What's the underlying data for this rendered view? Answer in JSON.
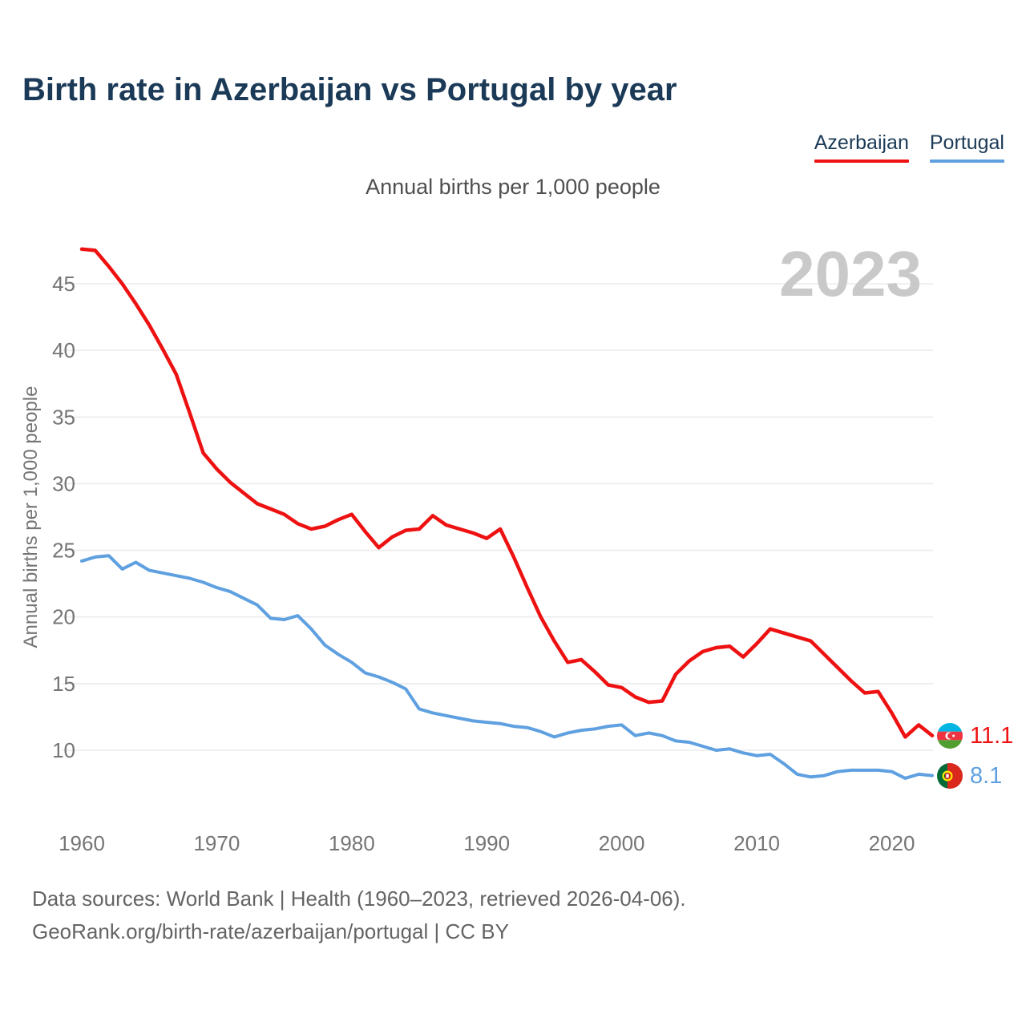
{
  "header": {
    "title": "Birth rate in Azerbaijan vs Portugal by year"
  },
  "subtitle": "Annual births per 1,000 people",
  "footer": {
    "line1": "Data sources: World Bank | Health (1960–2023, retrieved 2026-04-06).",
    "line2": "GeoRank.org/birth-rate/azerbaijan/portugal | CC BY"
  },
  "chart_data": {
    "type": "line",
    "title": "Birth rate in Azerbaijan vs Portugal by year",
    "ylabel": "Annual births per 1,000 people",
    "watermark": "2023",
    "grid": true,
    "legend_position": "top-right",
    "x_start": 1960,
    "x_end": 2023,
    "x_ticks": [
      1960,
      1970,
      1980,
      1990,
      2000,
      2010,
      2020
    ],
    "y_ticks": [
      10,
      15,
      20,
      25,
      30,
      35,
      40,
      45
    ],
    "ylim": [
      7,
      48.5
    ],
    "series": [
      {
        "name": "Azerbaijan",
        "color": "#ee1111",
        "end_label": "11.1",
        "flag_icon": "azerbaijan-flag-icon",
        "values": [
          47.6,
          47.5,
          46.3,
          45.0,
          43.5,
          41.9,
          40.1,
          38.2,
          35.3,
          32.3,
          31.1,
          30.1,
          29.3,
          28.5,
          28.1,
          27.7,
          27.0,
          26.6,
          26.8,
          27.3,
          27.7,
          26.4,
          25.2,
          26.0,
          26.5,
          26.6,
          27.6,
          26.9,
          26.6,
          26.3,
          25.9,
          26.6,
          24.5,
          22.2,
          20.0,
          18.2,
          16.6,
          16.8,
          15.9,
          14.9,
          14.7,
          14.0,
          13.6,
          13.7,
          15.7,
          16.7,
          17.4,
          17.7,
          17.8,
          17.0,
          18.0,
          19.1,
          18.8,
          18.5,
          18.2,
          17.2,
          16.2,
          15.2,
          14.3,
          14.4,
          12.8,
          11.0,
          11.9,
          11.1
        ]
      },
      {
        "name": "Portugal",
        "color": "#5fa0e0",
        "end_label": "8.1",
        "flag_icon": "portugal-flag-icon",
        "values": [
          24.2,
          24.5,
          24.6,
          23.6,
          24.1,
          23.5,
          23.3,
          23.1,
          22.9,
          22.6,
          22.2,
          21.9,
          21.4,
          20.9,
          19.9,
          19.8,
          20.1,
          19.1,
          17.9,
          17.2,
          16.6,
          15.8,
          15.5,
          15.1,
          14.6,
          13.1,
          12.8,
          12.6,
          12.4,
          12.2,
          12.1,
          12.0,
          11.8,
          11.7,
          11.4,
          11.0,
          11.3,
          11.5,
          11.6,
          11.8,
          11.9,
          11.1,
          11.3,
          11.1,
          10.7,
          10.6,
          10.3,
          10.0,
          10.1,
          9.8,
          9.6,
          9.7,
          9.0,
          8.2,
          8.0,
          8.1,
          8.4,
          8.5,
          8.5,
          8.5,
          8.4,
          7.9,
          8.2,
          8.1
        ]
      }
    ]
  }
}
